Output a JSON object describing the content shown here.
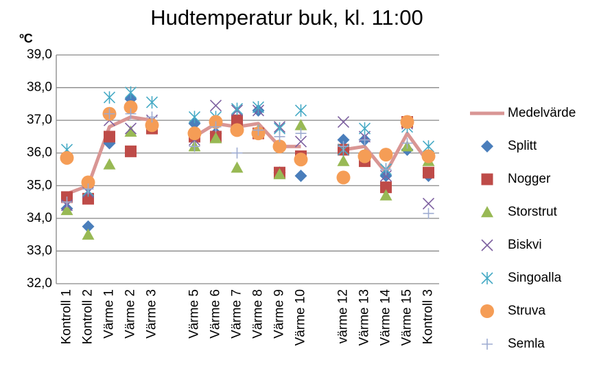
{
  "chart_data": {
    "type": "line",
    "title": "Hudtemperatur buk, kl. 11:00",
    "y_label": "ºC",
    "categories": [
      "Kontroll 1",
      "Kontroll 2",
      "Värme 1",
      "Värme 2",
      "Värme 3",
      null,
      "Värme 5",
      "Värme 6",
      "Värme 7",
      "Värme 8",
      "Värme 9",
      "Värme 10",
      null,
      "värme 12",
      "Värme 13",
      "Värme 14",
      "Värme 15",
      "Kontroll 3"
    ],
    "ylim": [
      32,
      39
    ],
    "yticks": [
      {
        "value": 32,
        "label": "32,0"
      },
      {
        "value": 33,
        "label": "33,0"
      },
      {
        "value": 34,
        "label": "34,0"
      },
      {
        "value": 35,
        "label": "35,0"
      },
      {
        "value": 36,
        "label": "36,0"
      },
      {
        "value": 37,
        "label": "37,0"
      },
      {
        "value": 38,
        "label": "38,0"
      },
      {
        "value": 39,
        "label": "39,0"
      }
    ],
    "grid": true,
    "legend": "right",
    "series": [
      {
        "name": "Medelvärde",
        "color": "#d99694",
        "marker": "line",
        "values": [
          34.75,
          35.0,
          36.8,
          37.1,
          37.0,
          null,
          36.5,
          36.9,
          36.8,
          36.9,
          36.2,
          36.2,
          null,
          36.1,
          36.2,
          35.4,
          36.6,
          35.7
        ]
      },
      {
        "name": "Splitt",
        "color": "#4a7ebb",
        "marker": "diamond",
        "values": [
          34.3,
          33.75,
          36.3,
          37.65,
          36.9,
          null,
          36.9,
          36.6,
          36.9,
          37.3,
          35.4,
          35.3,
          null,
          36.4,
          36.4,
          35.3,
          36.1,
          35.3
        ]
      },
      {
        "name": "Nogger",
        "color": "#be4b48",
        "marker": "square",
        "values": [
          34.65,
          34.6,
          36.5,
          36.05,
          36.75,
          null,
          36.5,
          36.5,
          37.0,
          36.6,
          35.4,
          35.9,
          null,
          36.1,
          35.75,
          34.95,
          36.95,
          35.4
        ]
      },
      {
        "name": "Storstrut",
        "color": "#98b954",
        "marker": "triangle",
        "values": [
          34.25,
          33.5,
          35.65,
          36.65,
          36.9,
          null,
          36.2,
          36.45,
          35.55,
          36.7,
          35.35,
          36.85,
          null,
          35.75,
          35.95,
          34.7,
          36.2,
          35.75
        ]
      },
      {
        "name": "Biskvi",
        "color": "#7d60a0",
        "marker": "x",
        "values": [
          34.4,
          34.8,
          37.0,
          36.75,
          37.0,
          null,
          36.4,
          37.45,
          37.3,
          37.3,
          36.8,
          36.35,
          null,
          36.95,
          36.5,
          35.3,
          36.9,
          34.45
        ]
      },
      {
        "name": "Singoalla",
        "color": "#46aac5",
        "marker": "asterisk",
        "values": [
          36.1,
          34.85,
          37.7,
          37.85,
          37.55,
          null,
          37.1,
          37.1,
          37.35,
          37.4,
          36.75,
          37.3,
          null,
          36.1,
          36.75,
          35.5,
          36.8,
          36.2
        ]
      },
      {
        "name": "Struva",
        "color": "#f59d56",
        "marker": "circle",
        "values": [
          35.85,
          35.1,
          37.2,
          37.4,
          36.85,
          null,
          36.6,
          36.95,
          36.7,
          36.6,
          36.2,
          35.8,
          null,
          35.25,
          35.9,
          35.95,
          36.95,
          35.9
        ]
      },
      {
        "name": "Semla",
        "color": "#9dabd1",
        "marker": "plus",
        "values": [
          34.5,
          34.9,
          37.2,
          37.2,
          37.1,
          null,
          36.2,
          36.8,
          36.0,
          36.7,
          36.5,
          36.6,
          null,
          36.2,
          36.4,
          35.5,
          36.3,
          34.15
        ]
      }
    ]
  }
}
